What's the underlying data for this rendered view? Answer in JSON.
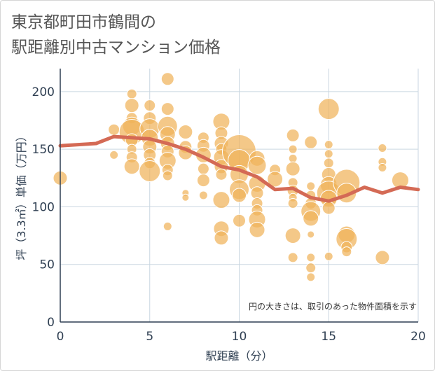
{
  "title": {
    "line1": "東京都町田市鶴間の",
    "line2": "駅距離別中古マンション価格"
  },
  "colors": {
    "bubble": "#f0b35a",
    "bubble_edge": "#ffffff",
    "line": "#d46a55",
    "grid": "#c9d6e0",
    "axis": "#2f3f52"
  },
  "chart_data": {
    "type": "scatter",
    "xlabel": "駅距離（分）",
    "ylabel": "坪（3.3㎡）単価（万円）",
    "xlim": [
      0,
      20
    ],
    "ylim": [
      0,
      220
    ],
    "xticks": [
      0,
      5,
      10,
      15,
      20
    ],
    "yticks": [
      0,
      50,
      100,
      150,
      200
    ],
    "grid": true,
    "annotation": "円の大きさは、取引のあった物件面積を示す",
    "points": [
      {
        "x": 0,
        "y": 125,
        "s": 10
      },
      {
        "x": 3,
        "y": 167,
        "s": 8
      },
      {
        "x": 3,
        "y": 145,
        "s": 6
      },
      {
        "x": 4,
        "y": 198,
        "s": 7
      },
      {
        "x": 4,
        "y": 188,
        "s": 10
      },
      {
        "x": 4,
        "y": 177,
        "s": 8
      },
      {
        "x": 4,
        "y": 170,
        "s": 13
      },
      {
        "x": 4,
        "y": 165,
        "s": 18
      },
      {
        "x": 4,
        "y": 158,
        "s": 9
      },
      {
        "x": 4,
        "y": 150,
        "s": 7
      },
      {
        "x": 4,
        "y": 143,
        "s": 8
      },
      {
        "x": 4,
        "y": 135,
        "s": 11
      },
      {
        "x": 5,
        "y": 188,
        "s": 8
      },
      {
        "x": 5,
        "y": 177,
        "s": 9
      },
      {
        "x": 5,
        "y": 168,
        "s": 14
      },
      {
        "x": 5,
        "y": 160,
        "s": 12
      },
      {
        "x": 5,
        "y": 152,
        "s": 10
      },
      {
        "x": 5,
        "y": 145,
        "s": 9
      },
      {
        "x": 5,
        "y": 138,
        "s": 8
      },
      {
        "x": 5,
        "y": 131,
        "s": 15
      },
      {
        "x": 6,
        "y": 211,
        "s": 9
      },
      {
        "x": 6,
        "y": 185,
        "s": 9
      },
      {
        "x": 6,
        "y": 170,
        "s": 14
      },
      {
        "x": 6,
        "y": 163,
        "s": 11
      },
      {
        "x": 6,
        "y": 155,
        "s": 10
      },
      {
        "x": 6,
        "y": 148,
        "s": 9
      },
      {
        "x": 6,
        "y": 140,
        "s": 12
      },
      {
        "x": 6,
        "y": 132,
        "s": 8
      },
      {
        "x": 6,
        "y": 127,
        "s": 7
      },
      {
        "x": 6,
        "y": 83,
        "s": 6
      },
      {
        "x": 7,
        "y": 165,
        "s": 10
      },
      {
        "x": 7,
        "y": 152,
        "s": 9
      },
      {
        "x": 7,
        "y": 147,
        "s": 10
      },
      {
        "x": 7,
        "y": 112,
        "s": 5
      },
      {
        "x": 7,
        "y": 108,
        "s": 5
      },
      {
        "x": 8,
        "y": 160,
        "s": 8
      },
      {
        "x": 8,
        "y": 153,
        "s": 9
      },
      {
        "x": 8,
        "y": 145,
        "s": 11
      },
      {
        "x": 8,
        "y": 133,
        "s": 8
      },
      {
        "x": 8,
        "y": 123,
        "s": 9
      },
      {
        "x": 8,
        "y": 110,
        "s": 6
      },
      {
        "x": 9,
        "y": 174,
        "s": 12
      },
      {
        "x": 9,
        "y": 164,
        "s": 9
      },
      {
        "x": 9,
        "y": 155,
        "s": 10
      },
      {
        "x": 9,
        "y": 150,
        "s": 8
      },
      {
        "x": 9,
        "y": 143,
        "s": 11
      },
      {
        "x": 9,
        "y": 135,
        "s": 10
      },
      {
        "x": 9,
        "y": 128,
        "s": 8
      },
      {
        "x": 9,
        "y": 106,
        "s": 12
      },
      {
        "x": 9,
        "y": 81,
        "s": 11
      },
      {
        "x": 9,
        "y": 73,
        "s": 10
      },
      {
        "x": 10,
        "y": 148,
        "s": 24
      },
      {
        "x": 10,
        "y": 140,
        "s": 16
      },
      {
        "x": 10,
        "y": 128,
        "s": 13
      },
      {
        "x": 10,
        "y": 115,
        "s": 14
      },
      {
        "x": 10,
        "y": 110,
        "s": 10
      },
      {
        "x": 10,
        "y": 88,
        "s": 9
      },
      {
        "x": 11,
        "y": 142,
        "s": 11
      },
      {
        "x": 11,
        "y": 136,
        "s": 13
      },
      {
        "x": 11,
        "y": 120,
        "s": 12
      },
      {
        "x": 11,
        "y": 112,
        "s": 9
      },
      {
        "x": 11,
        "y": 103,
        "s": 8
      },
      {
        "x": 11,
        "y": 97,
        "s": 8
      },
      {
        "x": 11,
        "y": 89,
        "s": 12
      },
      {
        "x": 11,
        "y": 80,
        "s": 11
      },
      {
        "x": 12,
        "y": 132,
        "s": 8
      },
      {
        "x": 12,
        "y": 124,
        "s": 11
      },
      {
        "x": 13,
        "y": 162,
        "s": 9
      },
      {
        "x": 13,
        "y": 150,
        "s": 6
      },
      {
        "x": 13,
        "y": 142,
        "s": 6
      },
      {
        "x": 13,
        "y": 133,
        "s": 10
      },
      {
        "x": 13,
        "y": 121,
        "s": 7
      },
      {
        "x": 13,
        "y": 114,
        "s": 8
      },
      {
        "x": 13,
        "y": 108,
        "s": 6
      },
      {
        "x": 13,
        "y": 103,
        "s": 7
      },
      {
        "x": 13,
        "y": 75,
        "s": 11
      },
      {
        "x": 13,
        "y": 56,
        "s": 7
      },
      {
        "x": 14,
        "y": 156,
        "s": 9
      },
      {
        "x": 14,
        "y": 118,
        "s": 6
      },
      {
        "x": 14,
        "y": 110,
        "s": 7
      },
      {
        "x": 14,
        "y": 103,
        "s": 8
      },
      {
        "x": 14,
        "y": 96,
        "s": 14
      },
      {
        "x": 14,
        "y": 90,
        "s": 11
      },
      {
        "x": 14,
        "y": 76,
        "s": 5
      },
      {
        "x": 14,
        "y": 56,
        "s": 6
      },
      {
        "x": 14,
        "y": 47,
        "s": 7
      },
      {
        "x": 14,
        "y": 39,
        "s": 6
      },
      {
        "x": 15,
        "y": 185,
        "s": 15
      },
      {
        "x": 15,
        "y": 154,
        "s": 6
      },
      {
        "x": 15,
        "y": 146,
        "s": 6
      },
      {
        "x": 15,
        "y": 138,
        "s": 7
      },
      {
        "x": 15,
        "y": 128,
        "s": 10
      },
      {
        "x": 15,
        "y": 119,
        "s": 12
      },
      {
        "x": 15,
        "y": 112,
        "s": 17
      },
      {
        "x": 15,
        "y": 107,
        "s": 12
      },
      {
        "x": 15,
        "y": 99,
        "s": 9
      },
      {
        "x": 15,
        "y": 57,
        "s": 6
      },
      {
        "x": 16,
        "y": 121,
        "s": 19
      },
      {
        "x": 16,
        "y": 112,
        "s": 14
      },
      {
        "x": 16,
        "y": 76,
        "s": 12
      },
      {
        "x": 16,
        "y": 72,
        "s": 15
      },
      {
        "x": 16,
        "y": 65,
        "s": 8
      },
      {
        "x": 16,
        "y": 61,
        "s": 7
      },
      {
        "x": 18,
        "y": 151,
        "s": 6
      },
      {
        "x": 18,
        "y": 139,
        "s": 6
      },
      {
        "x": 18,
        "y": 134,
        "s": 6
      },
      {
        "x": 18,
        "y": 56,
        "s": 10
      },
      {
        "x": 19,
        "y": 123,
        "s": 12
      }
    ],
    "series": [
      {
        "x": [
          0,
          1,
          2,
          3,
          4,
          5,
          6,
          7,
          8,
          9,
          10,
          11,
          12,
          13,
          14,
          15,
          16,
          17,
          18,
          19,
          20
        ],
        "values": [
          153,
          154,
          155,
          161,
          160,
          159,
          155,
          150,
          143,
          135,
          132,
          126,
          115,
          116,
          108,
          105,
          110,
          117,
          112,
          117,
          115
        ]
      }
    ]
  }
}
